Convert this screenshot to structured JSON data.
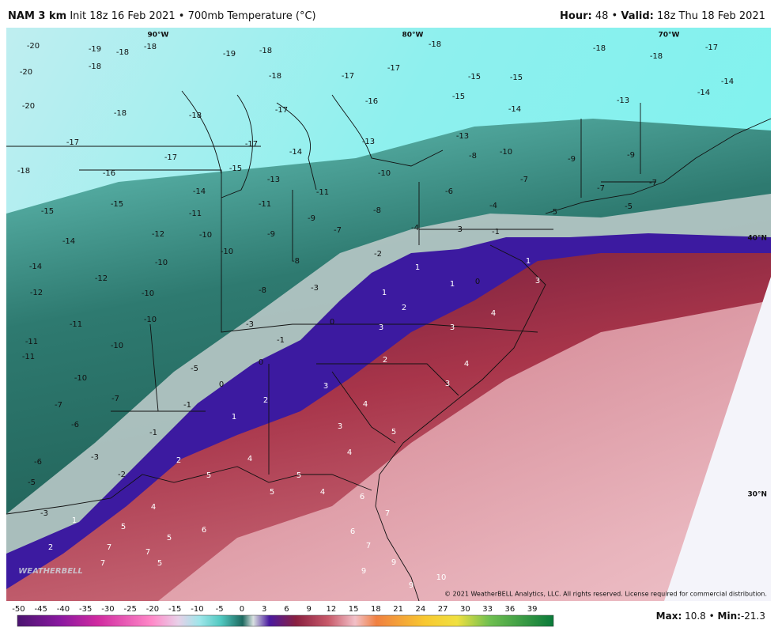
{
  "header": {
    "model": "NAM 3 km",
    "init": "Init 18z 16 Feb 2021 • 700mb Temperature (°C)",
    "hour_label": "Hour:",
    "hour": 48,
    "valid_label": "Valid:",
    "valid": "18z Thu 18 Feb 2021"
  },
  "map": {
    "lon_labels": [
      "90°W",
      "80°W",
      "70°W"
    ],
    "lat_labels": [
      "40°N",
      "30°N"
    ],
    "copyright": "© 2021 WeatherBELL Analytics, LLC. All rights reserved. License required for commercial distribution.",
    "labels": [
      -20,
      -19,
      -18,
      -18,
      -19,
      -18,
      -20,
      -18,
      -18,
      -17,
      -17,
      -18,
      -15,
      -15,
      -18,
      -18,
      -17,
      -14,
      -20,
      -18,
      -18,
      -17,
      -16,
      -15,
      -14,
      -13,
      -14,
      -17,
      -17,
      -17,
      -14,
      -13,
      -13,
      -10,
      -9,
      -9,
      -18,
      -16,
      -14,
      -15,
      -13,
      -11,
      -10,
      -8,
      -7,
      -7,
      -7,
      -15,
      -15,
      -11,
      -11,
      -9,
      -8,
      -6,
      -4,
      -5,
      -5,
      -14,
      -12,
      -10,
      -9,
      -7,
      -4,
      -3,
      -1,
      -14,
      -12,
      -10,
      -10,
      -8,
      -2,
      1,
      0,
      1,
      -12,
      -10,
      -8,
      -3,
      1,
      1,
      3,
      -11,
      -10,
      -3,
      0,
      2,
      4,
      -11,
      -10,
      -1,
      3,
      3,
      -11,
      -5,
      0,
      2,
      4,
      -10,
      0,
      3,
      3,
      -7,
      -7,
      -1,
      2,
      4,
      -6,
      -1,
      1,
      3,
      5,
      -3,
      2,
      4,
      4,
      -6,
      -2,
      5,
      5,
      -5,
      5,
      4,
      6,
      -3,
      4,
      1,
      5,
      6,
      5,
      6,
      7,
      2,
      7,
      7,
      7,
      9,
      7,
      5,
      9,
      10,
      9
    ]
  },
  "colorbar": {
    "ticks": [
      -50,
      -45,
      -40,
      -35,
      -30,
      -25,
      -20,
      -15,
      -10,
      -5,
      0,
      3,
      6,
      9,
      12,
      15,
      18,
      21,
      24,
      27,
      30,
      33,
      36,
      39
    ]
  },
  "footer": {
    "max_label": "Max:",
    "max": 10.8,
    "sep": "•",
    "min_label": "Min:",
    "min": -21.3
  }
}
